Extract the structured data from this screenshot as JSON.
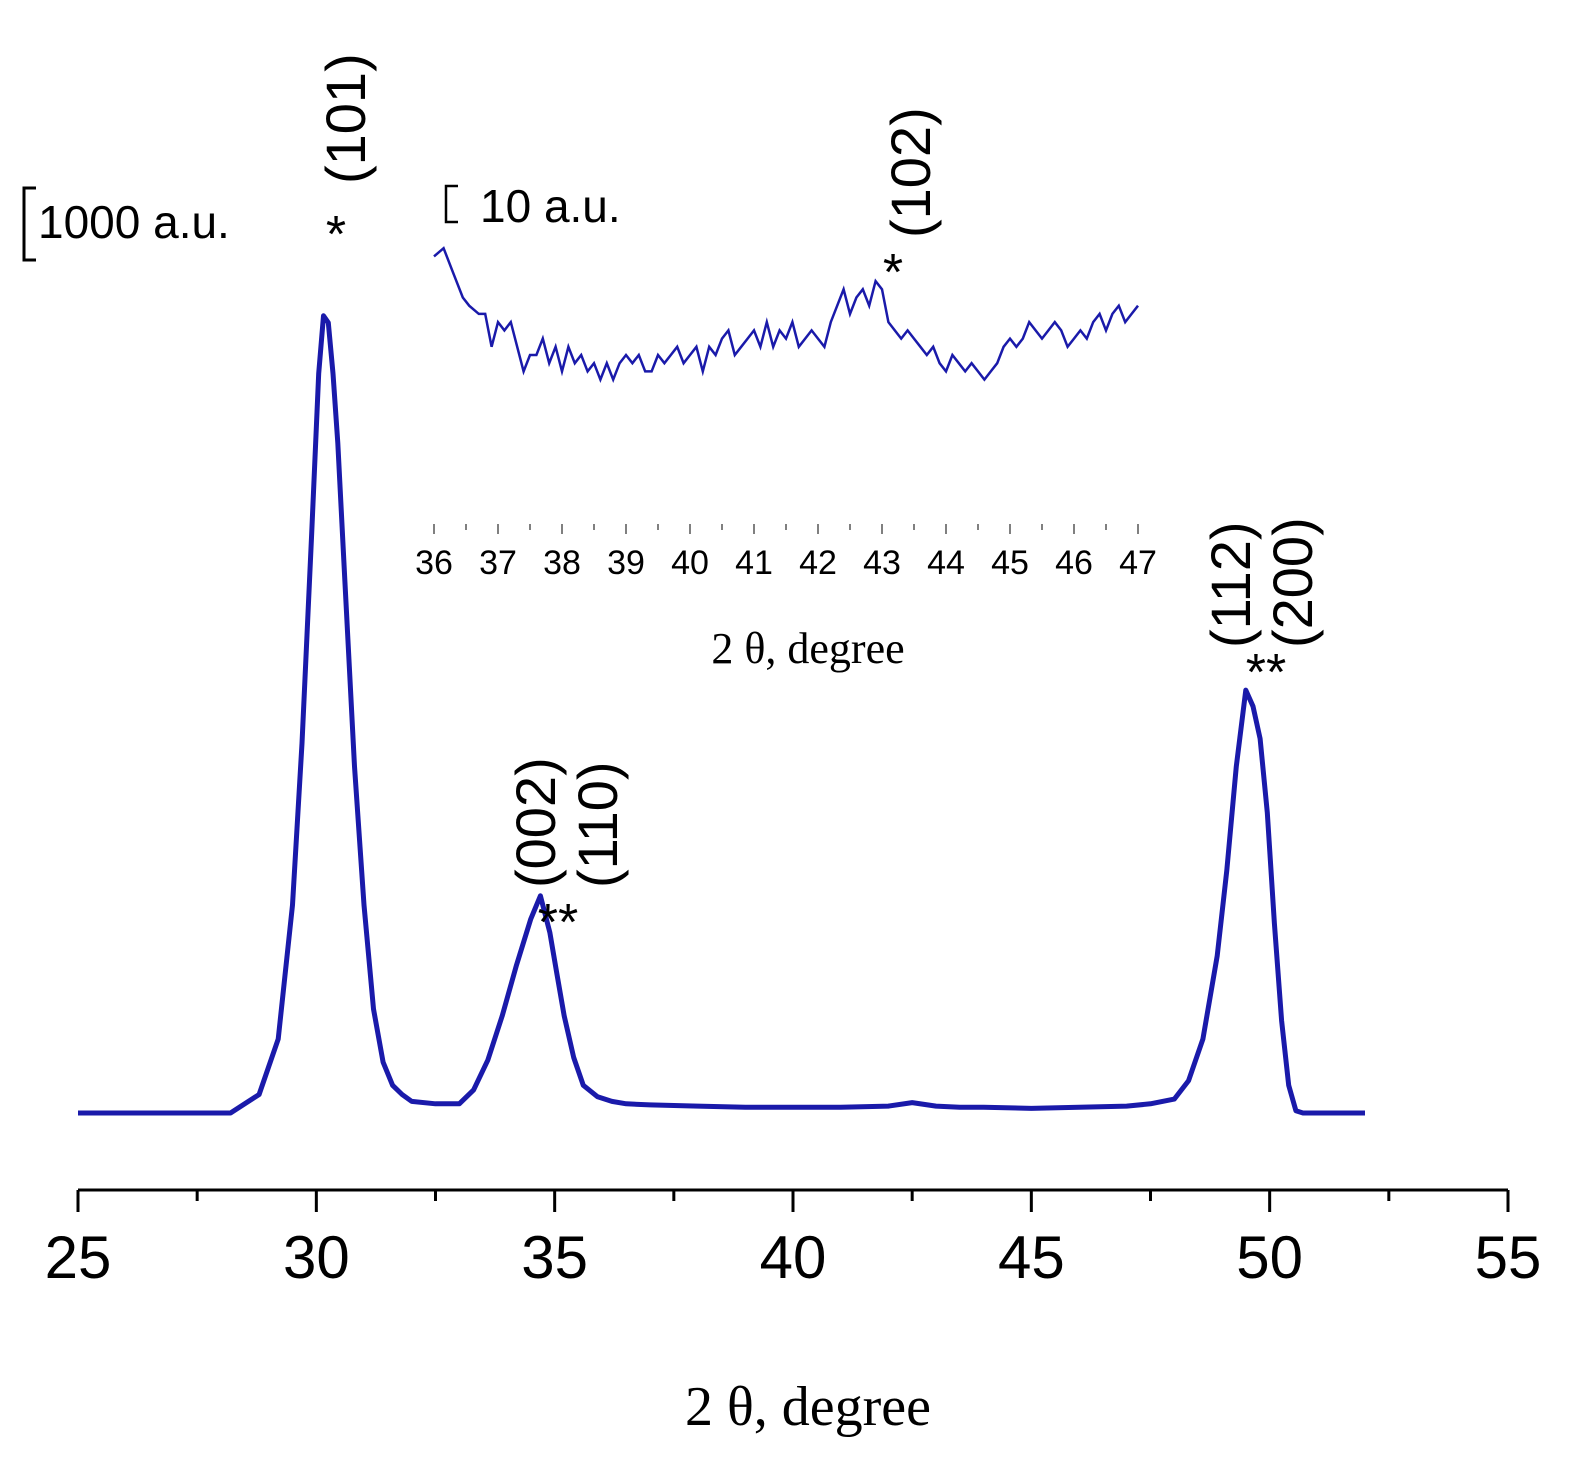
{
  "chart_data": [
    {
      "type": "line",
      "xlabel": "2 θ, degree",
      "ylabel": "",
      "xlim": [
        25,
        55
      ],
      "ylim": [
        0,
        3700
      ],
      "x_ticks": [
        25,
        30,
        35,
        40,
        45,
        50,
        55
      ],
      "x_minor_step": 2.5,
      "scale_bar_label": "1000 a.u.",
      "scale_bar_value": 1000,
      "color": "#1a1aaa",
      "series": [
        {
          "x": [
            25,
            27,
            28.2,
            28.8,
            29.2,
            29.5,
            29.7,
            29.9,
            30.05,
            30.15,
            30.25,
            30.35,
            30.45,
            30.6,
            30.8,
            31.0,
            31.2,
            31.4,
            31.6,
            31.8,
            32.0,
            32.5,
            33.0,
            33.3,
            33.6,
            33.9,
            34.2,
            34.5,
            34.7,
            34.9,
            35.05,
            35.2,
            35.4,
            35.6,
            35.9,
            36.2,
            36.5,
            37.0,
            38.0,
            39.0,
            40.0,
            41.0,
            42.0,
            42.5,
            43.0,
            43.5,
            44.0,
            45.0,
            46.0,
            47.0,
            47.5,
            48.0,
            48.3,
            48.6,
            48.9,
            49.1,
            49.3,
            49.5,
            49.65,
            49.8,
            49.95,
            50.1,
            50.25,
            50.4,
            50.55,
            50.7,
            50.9,
            51.3,
            52.0
          ],
          "y": [
            0,
            0,
            0,
            80,
            320,
            900,
            1600,
            2500,
            3200,
            3450,
            3420,
            3200,
            2900,
            2300,
            1500,
            900,
            450,
            220,
            120,
            80,
            50,
            40,
            40,
            100,
            230,
            420,
            640,
            840,
            940,
            780,
            600,
            420,
            240,
            120,
            70,
            50,
            40,
            35,
            30,
            25,
            25,
            25,
            30,
            45,
            30,
            25,
            25,
            20,
            25,
            30,
            40,
            60,
            140,
            320,
            680,
            1050,
            1500,
            1830,
            1760,
            1620,
            1300,
            820,
            400,
            120,
            10,
            0,
            0,
            0,
            0
          ]
        }
      ],
      "annotations": [
        {
          "marker": "*",
          "label": "(101)"
        },
        {
          "marker": "**",
          "label": "(002)\n(110)"
        },
        {
          "marker": "**",
          "label": "(112)\n(200)"
        }
      ]
    },
    {
      "type": "line",
      "xlabel": "2 θ, degree",
      "ylabel": "",
      "xlim": [
        36,
        47
      ],
      "ylim": [
        0,
        28
      ],
      "x_ticks": [
        36,
        37,
        38,
        39,
        40,
        41,
        42,
        43,
        44,
        45,
        46,
        47
      ],
      "scale_bar_label": "10 a.u.",
      "scale_bar_value": 10,
      "color": "#1a1aaa",
      "series": [
        {
          "x": [
            36.0,
            36.15,
            36.3,
            36.45,
            36.55,
            36.7,
            36.8,
            36.9,
            37.0,
            37.1,
            37.2,
            37.3,
            37.4,
            37.5,
            37.6,
            37.7,
            37.8,
            37.9,
            38.0,
            38.1,
            38.2,
            38.3,
            38.4,
            38.5,
            38.6,
            38.7,
            38.8,
            38.9,
            39.0,
            39.1,
            39.2,
            39.3,
            39.4,
            39.5,
            39.6,
            39.7,
            39.8,
            39.9,
            40.0,
            40.1,
            40.2,
            40.3,
            40.4,
            40.5,
            40.6,
            40.7,
            40.8,
            40.9,
            41.0,
            41.1,
            41.2,
            41.3,
            41.4,
            41.5,
            41.6,
            41.7,
            41.8,
            41.9,
            42.0,
            42.1,
            42.2,
            42.3,
            42.4,
            42.5,
            42.6,
            42.7,
            42.8,
            42.9,
            43.0,
            43.1,
            43.2,
            43.3,
            43.4,
            43.5,
            43.6,
            43.7,
            43.8,
            43.9,
            44.0,
            44.1,
            44.2,
            44.3,
            44.4,
            44.5,
            44.6,
            44.7,
            44.8,
            44.9,
            45.0,
            45.1,
            45.2,
            45.3,
            45.4,
            45.5,
            45.6,
            45.7,
            45.8,
            45.9,
            46.0,
            46.1,
            46.2,
            46.3,
            46.4,
            46.5,
            46.6,
            46.7,
            46.8,
            46.9,
            47.0
          ],
          "y": [
            26,
            27,
            24,
            21,
            20,
            19,
            19,
            15,
            18,
            17,
            18,
            15,
            12,
            14,
            14,
            16,
            13,
            15,
            12,
            15,
            13,
            14,
            12,
            13,
            11,
            13,
            11,
            13,
            14,
            13,
            14,
            12,
            12,
            14,
            13,
            14,
            15,
            13,
            14,
            15,
            12,
            15,
            14,
            16,
            17,
            14,
            15,
            16,
            17,
            15,
            18,
            15,
            17,
            16,
            18,
            15,
            16,
            17,
            16,
            15,
            18,
            20,
            22,
            19,
            21,
            22,
            20,
            23,
            22,
            18,
            17,
            16,
            17,
            16,
            15,
            14,
            15,
            13,
            12,
            14,
            13,
            12,
            13,
            12,
            11,
            12,
            13,
            15,
            16,
            15,
            16,
            18,
            17,
            16,
            17,
            18,
            17,
            15,
            16,
            17,
            16,
            18,
            19,
            17,
            19,
            20,
            18,
            19,
            20
          ]
        }
      ],
      "annotations": [
        {
          "marker": "*",
          "label": "(102)"
        }
      ]
    }
  ]
}
